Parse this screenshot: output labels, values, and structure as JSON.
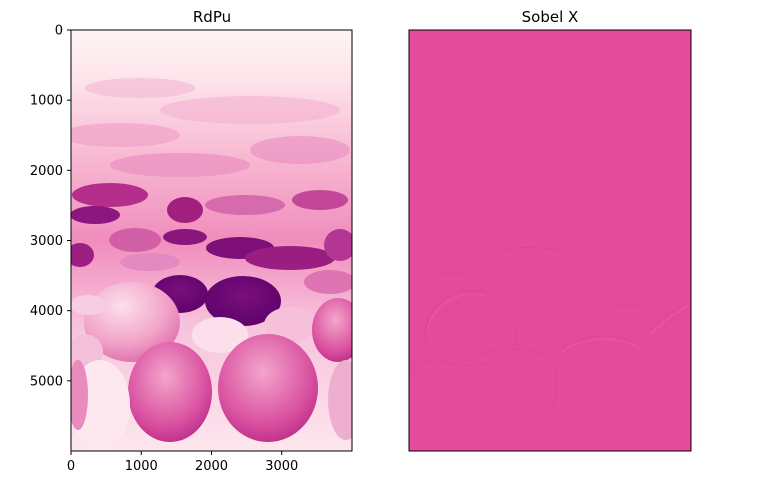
{
  "chart_data": [
    {
      "type": "heatmap",
      "title": "RdPu",
      "colormap": "RdPu",
      "xlim": [
        0,
        4000
      ],
      "ylim": [
        6000,
        0
      ],
      "x_ticks": [
        0,
        1000,
        2000,
        3000
      ],
      "y_ticks": [
        0,
        1000,
        2000,
        3000,
        4000,
        5000
      ],
      "x_tick_labels": [
        "0",
        "1000",
        "2000",
        "3000"
      ],
      "y_tick_labels": [
        "0",
        "1000",
        "2000",
        "3000",
        "4000",
        "5000"
      ],
      "show_axes": true,
      "grid": false
    },
    {
      "type": "heatmap",
      "title": "Sobel X",
      "colormap": "RdPu",
      "fill_color": "#e54b9b",
      "show_axes": false,
      "grid": false
    }
  ],
  "colors": {
    "rdpu_light": "#fff2f4",
    "rdpu_mid": "#e580b8",
    "rdpu_dark": "#6f0a78",
    "sobel_fill": "#e54b9b"
  }
}
